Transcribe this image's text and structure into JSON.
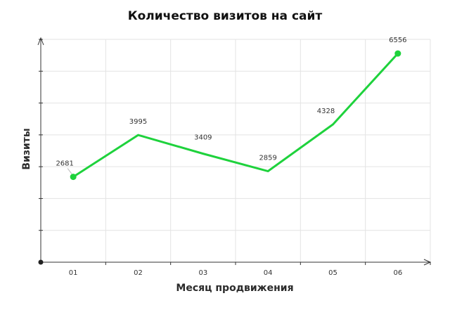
{
  "chart_data": {
    "type": "line",
    "title": "Количество визитов на сайт",
    "xlabel": "Месяц продвижения",
    "ylabel": "Визиты",
    "categories": [
      "01",
      "02",
      "03",
      "04",
      "05",
      "06"
    ],
    "series": [
      {
        "values": [
          2681,
          3995,
          3409,
          2859,
          4328,
          6556
        ]
      }
    ],
    "data_labels": [
      "2681",
      "3995",
      "3409",
      "2859",
      "4328",
      "6556"
    ],
    "ylim": [
      0,
      7000
    ],
    "grid": true,
    "legend": "none",
    "line_color": "#1ed23c",
    "marker_color": "#1ed23c",
    "marker_points": [
      0,
      5
    ]
  }
}
